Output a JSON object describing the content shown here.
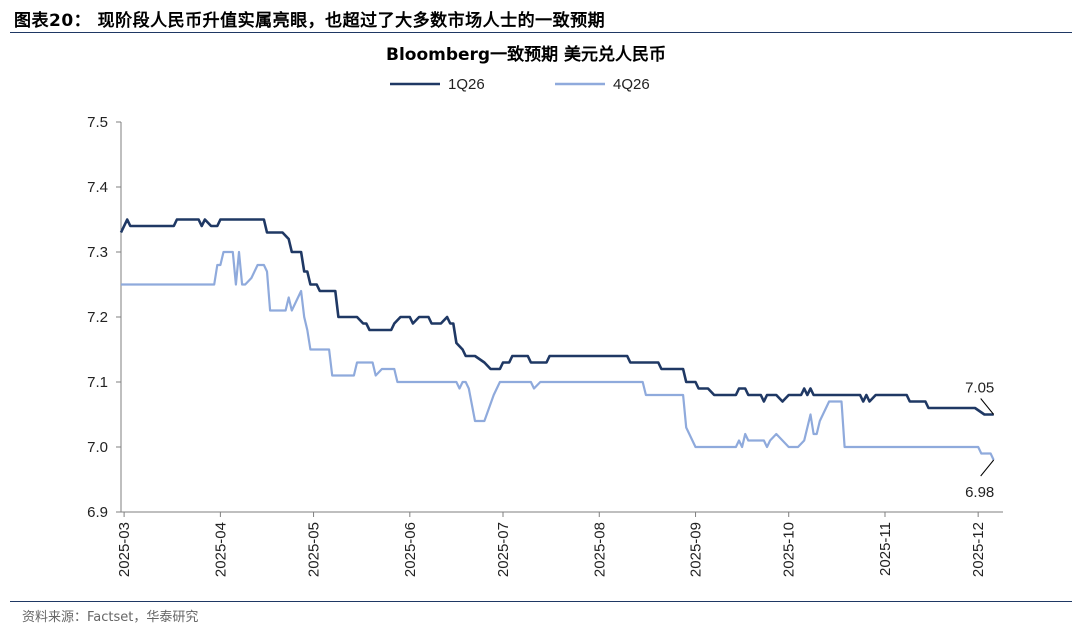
{
  "figure": {
    "title": "图表20：  现阶段人民币升值实属亮眼，也超过了大多数市场人士的一致预期",
    "source": "资料来源：Factset，华泰研究"
  },
  "colors": {
    "rule": "#1f3864",
    "series_1Q26": "#1f3864",
    "series_4Q26": "#8faadc",
    "axis": "#7f7f7f"
  },
  "chart_data": {
    "type": "line",
    "title": "Bloomberg一致预期 美元兑人民币",
    "xlabel": "",
    "ylabel": "",
    "ylim": [
      6.9,
      7.5
    ],
    "yticks": [
      "7.5",
      "7.4",
      "7.3",
      "7.2",
      "7.1",
      "7.0",
      "6.9"
    ],
    "xlim": [
      "2025-02-28",
      "2025-12-09"
    ],
    "xticks": [
      {
        "date": "2025-03-01",
        "label": "2025-03"
      },
      {
        "date": "2025-04-01",
        "label": "2025-04"
      },
      {
        "date": "2025-05-01",
        "label": "2025-05"
      },
      {
        "date": "2025-06-01",
        "label": "2025-06"
      },
      {
        "date": "2025-07-01",
        "label": "2025-07"
      },
      {
        "date": "2025-08-01",
        "label": "2025-08"
      },
      {
        "date": "2025-09-01",
        "label": "2025-09"
      },
      {
        "date": "2025-10-01",
        "label": "2025-10"
      },
      {
        "date": "2025-11-01",
        "label": "2025-11"
      },
      {
        "date": "2025-12-01",
        "label": "2025-12"
      }
    ],
    "grid": false,
    "legend_position": "top-center",
    "series": [
      {
        "name": "1Q26",
        "points": [
          [
            "2025-02-28",
            7.33
          ],
          [
            "2025-03-02",
            7.35
          ],
          [
            "2025-03-03",
            7.34
          ],
          [
            "2025-03-17",
            7.34
          ],
          [
            "2025-03-18",
            7.35
          ],
          [
            "2025-03-25",
            7.35
          ],
          [
            "2025-03-26",
            7.34
          ],
          [
            "2025-03-27",
            7.35
          ],
          [
            "2025-03-29",
            7.34
          ],
          [
            "2025-03-31",
            7.34
          ],
          [
            "2025-04-01",
            7.35
          ],
          [
            "2025-04-15",
            7.35
          ],
          [
            "2025-04-16",
            7.33
          ],
          [
            "2025-04-21",
            7.33
          ],
          [
            "2025-04-23",
            7.32
          ],
          [
            "2025-04-24",
            7.3
          ],
          [
            "2025-04-27",
            7.3
          ],
          [
            "2025-04-28",
            7.27
          ],
          [
            "2025-04-29",
            7.27
          ],
          [
            "2025-04-30",
            7.25
          ],
          [
            "2025-05-02",
            7.25
          ],
          [
            "2025-05-03",
            7.24
          ],
          [
            "2025-05-08",
            7.24
          ],
          [
            "2025-05-09",
            7.2
          ],
          [
            "2025-05-15",
            7.2
          ],
          [
            "2025-05-17",
            7.19
          ],
          [
            "2025-05-18",
            7.19
          ],
          [
            "2025-05-19",
            7.18
          ],
          [
            "2025-05-26",
            7.18
          ],
          [
            "2025-05-27",
            7.19
          ],
          [
            "2025-05-29",
            7.2
          ],
          [
            "2025-06-01",
            7.2
          ],
          [
            "2025-06-02",
            7.19
          ],
          [
            "2025-06-04",
            7.2
          ],
          [
            "2025-06-07",
            7.2
          ],
          [
            "2025-06-08",
            7.19
          ],
          [
            "2025-06-11",
            7.19
          ],
          [
            "2025-06-13",
            7.2
          ],
          [
            "2025-06-14",
            7.19
          ],
          [
            "2025-06-15",
            7.19
          ],
          [
            "2025-06-16",
            7.16
          ],
          [
            "2025-06-18",
            7.15
          ],
          [
            "2025-06-19",
            7.14
          ],
          [
            "2025-06-22",
            7.14
          ],
          [
            "2025-06-25",
            7.13
          ],
          [
            "2025-06-27",
            7.12
          ],
          [
            "2025-06-30",
            7.12
          ],
          [
            "2025-07-01",
            7.13
          ],
          [
            "2025-07-03",
            7.13
          ],
          [
            "2025-07-04",
            7.14
          ],
          [
            "2025-07-09",
            7.14
          ],
          [
            "2025-07-10",
            7.13
          ],
          [
            "2025-07-15",
            7.13
          ],
          [
            "2025-07-16",
            7.14
          ],
          [
            "2025-08-10",
            7.14
          ],
          [
            "2025-08-11",
            7.13
          ],
          [
            "2025-08-20",
            7.13
          ],
          [
            "2025-08-21",
            7.12
          ],
          [
            "2025-08-28",
            7.12
          ],
          [
            "2025-08-29",
            7.1
          ],
          [
            "2025-09-01",
            7.1
          ],
          [
            "2025-09-02",
            7.09
          ],
          [
            "2025-09-05",
            7.09
          ],
          [
            "2025-09-07",
            7.08
          ],
          [
            "2025-09-14",
            7.08
          ],
          [
            "2025-09-15",
            7.09
          ],
          [
            "2025-09-17",
            7.09
          ],
          [
            "2025-09-18",
            7.08
          ],
          [
            "2025-09-22",
            7.08
          ],
          [
            "2025-09-23",
            7.07
          ],
          [
            "2025-09-24",
            7.08
          ],
          [
            "2025-09-27",
            7.08
          ],
          [
            "2025-09-29",
            7.07
          ],
          [
            "2025-10-01",
            7.08
          ],
          [
            "2025-10-05",
            7.08
          ],
          [
            "2025-10-06",
            7.09
          ],
          [
            "2025-10-07",
            7.08
          ],
          [
            "2025-10-08",
            7.09
          ],
          [
            "2025-10-09",
            7.08
          ],
          [
            "2025-10-24",
            7.08
          ],
          [
            "2025-10-25",
            7.07
          ],
          [
            "2025-10-26",
            7.08
          ],
          [
            "2025-10-27",
            7.07
          ],
          [
            "2025-10-29",
            7.08
          ],
          [
            "2025-11-08",
            7.08
          ],
          [
            "2025-11-09",
            7.07
          ],
          [
            "2025-11-14",
            7.07
          ],
          [
            "2025-11-15",
            7.06
          ],
          [
            "2025-11-30",
            7.06
          ],
          [
            "2025-12-03",
            7.05
          ],
          [
            "2025-12-06",
            7.05
          ]
        ]
      },
      {
        "name": "4Q26",
        "points": [
          [
            "2025-02-28",
            7.25
          ],
          [
            "2025-03-30",
            7.25
          ],
          [
            "2025-03-31",
            7.28
          ],
          [
            "2025-04-01",
            7.28
          ],
          [
            "2025-04-02",
            7.3
          ],
          [
            "2025-04-05",
            7.3
          ],
          [
            "2025-04-06",
            7.25
          ],
          [
            "2025-04-07",
            7.3
          ],
          [
            "2025-04-08",
            7.25
          ],
          [
            "2025-04-09",
            7.25
          ],
          [
            "2025-04-11",
            7.26
          ],
          [
            "2025-04-13",
            7.28
          ],
          [
            "2025-04-15",
            7.28
          ],
          [
            "2025-04-16",
            7.27
          ],
          [
            "2025-04-17",
            7.21
          ],
          [
            "2025-04-22",
            7.21
          ],
          [
            "2025-04-23",
            7.23
          ],
          [
            "2025-04-24",
            7.21
          ],
          [
            "2025-04-27",
            7.24
          ],
          [
            "2025-04-28",
            7.2
          ],
          [
            "2025-04-29",
            7.18
          ],
          [
            "2025-04-30",
            7.15
          ],
          [
            "2025-05-06",
            7.15
          ],
          [
            "2025-05-07",
            7.11
          ],
          [
            "2025-05-14",
            7.11
          ],
          [
            "2025-05-15",
            7.13
          ],
          [
            "2025-05-20",
            7.13
          ],
          [
            "2025-05-21",
            7.11
          ],
          [
            "2025-05-23",
            7.12
          ],
          [
            "2025-05-27",
            7.12
          ],
          [
            "2025-05-28",
            7.1
          ],
          [
            "2025-06-15",
            7.1
          ],
          [
            "2025-06-16",
            7.1
          ],
          [
            "2025-06-17",
            7.09
          ],
          [
            "2025-06-18",
            7.1
          ],
          [
            "2025-06-19",
            7.1
          ],
          [
            "2025-06-20",
            7.09
          ],
          [
            "2025-06-22",
            7.04
          ],
          [
            "2025-06-25",
            7.04
          ],
          [
            "2025-06-28",
            7.08
          ],
          [
            "2025-06-30",
            7.1
          ],
          [
            "2025-07-10",
            7.1
          ],
          [
            "2025-07-11",
            7.09
          ],
          [
            "2025-07-13",
            7.1
          ],
          [
            "2025-08-15",
            7.1
          ],
          [
            "2025-08-16",
            7.08
          ],
          [
            "2025-08-28",
            7.08
          ],
          [
            "2025-08-29",
            7.03
          ],
          [
            "2025-09-01",
            7.0
          ],
          [
            "2025-09-14",
            7.0
          ],
          [
            "2025-09-15",
            7.01
          ],
          [
            "2025-09-16",
            7.0
          ],
          [
            "2025-09-17",
            7.02
          ],
          [
            "2025-09-18",
            7.01
          ],
          [
            "2025-09-23",
            7.01
          ],
          [
            "2025-09-24",
            7.0
          ],
          [
            "2025-09-25",
            7.01
          ],
          [
            "2025-09-27",
            7.02
          ],
          [
            "2025-09-29",
            7.01
          ],
          [
            "2025-10-01",
            7.0
          ],
          [
            "2025-10-04",
            7.0
          ],
          [
            "2025-10-06",
            7.01
          ],
          [
            "2025-10-08",
            7.05
          ],
          [
            "2025-10-09",
            7.02
          ],
          [
            "2025-10-10",
            7.02
          ],
          [
            "2025-10-11",
            7.04
          ],
          [
            "2025-10-14",
            7.07
          ],
          [
            "2025-10-18",
            7.07
          ],
          [
            "2025-10-19",
            7.0
          ],
          [
            "2025-12-01",
            7.0
          ],
          [
            "2025-12-02",
            6.99
          ],
          [
            "2025-12-05",
            6.99
          ],
          [
            "2025-12-06",
            6.98
          ]
        ]
      }
    ],
    "annotations": [
      {
        "text": "7.05",
        "series": "1Q26",
        "at": "end",
        "position": "above"
      },
      {
        "text": "6.98",
        "series": "4Q26",
        "at": "end",
        "position": "below"
      }
    ]
  }
}
